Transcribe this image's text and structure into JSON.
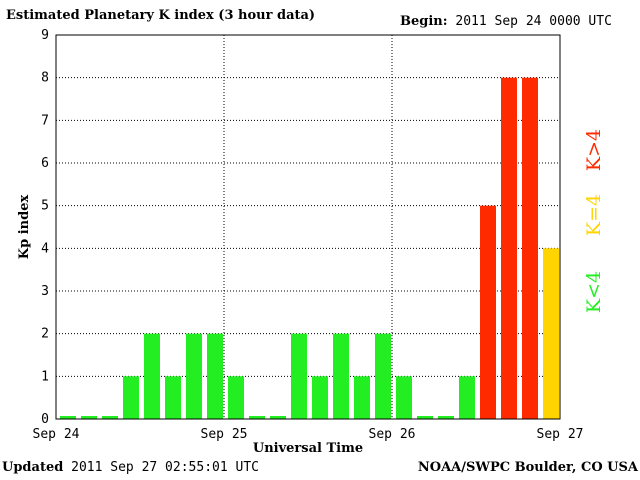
{
  "header": {
    "title": "Estimated Planetary K index (3 hour data)",
    "begin_label": "Begin:",
    "begin_value": "2011 Sep 24 0000 UTC"
  },
  "footer": {
    "updated_label": "Updated",
    "updated_value": "2011 Sep 27 02:55:01 UTC",
    "credit": "NOAA/SWPC Boulder, CO USA"
  },
  "legend": {
    "items": [
      {
        "label": "K<4",
        "color": "#22ee22"
      },
      {
        "label": "K=4",
        "color": "#ffd400"
      },
      {
        "label": "K>4",
        "color": "#ff2a00"
      }
    ]
  },
  "chart_data": {
    "type": "bar",
    "title": "Estimated Planetary K index (3 hour data)",
    "xlabel": "Universal Time",
    "ylabel": "Kp index",
    "ylim": [
      0,
      9
    ],
    "yticks": [
      0,
      1,
      2,
      3,
      4,
      5,
      6,
      7,
      8,
      9
    ],
    "xticks": [
      "Sep 24",
      "Sep 25",
      "Sep 26",
      "Sep 27"
    ],
    "grid": true,
    "legend_position": "right",
    "bars_per_day": 8,
    "values": [
      0,
      0,
      0,
      1,
      2,
      1,
      2,
      2,
      1,
      0,
      0,
      2,
      1,
      2,
      1,
      2,
      1,
      0,
      0,
      1,
      5,
      8,
      8,
      4
    ],
    "colors": {
      "low": "#22ee22",
      "equal": "#ffd400",
      "high": "#ff2a00"
    }
  }
}
